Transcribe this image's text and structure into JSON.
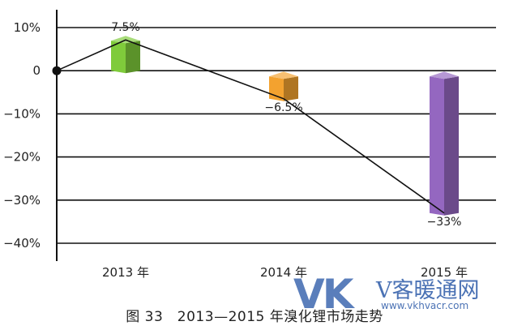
{
  "chart_data": {
    "type": "bar",
    "categories": [
      "2013 年",
      "2014 年",
      "2015 年"
    ],
    "values": [
      7.5,
      -6.5,
      -33
    ],
    "data_labels": [
      "7.5%",
      "−6.5%",
      "−33%"
    ],
    "yticks": [
      10,
      0,
      -10,
      -20,
      -30,
      -40
    ],
    "ytick_labels": [
      "10%",
      "0",
      "−10%",
      "−20%",
      "−30%",
      "−40%"
    ],
    "ylim": [
      -40,
      10
    ],
    "line_start": 0,
    "grid": true,
    "colors": [
      "#7fcb3b",
      "#f3a22f",
      "#9467c0"
    ]
  },
  "caption": "图 33　2013—2015 年溴化锂市场走势",
  "watermark": {
    "logo": "VK",
    "site_name": "V客暖通网",
    "url": "www.vkhvacr.com"
  }
}
